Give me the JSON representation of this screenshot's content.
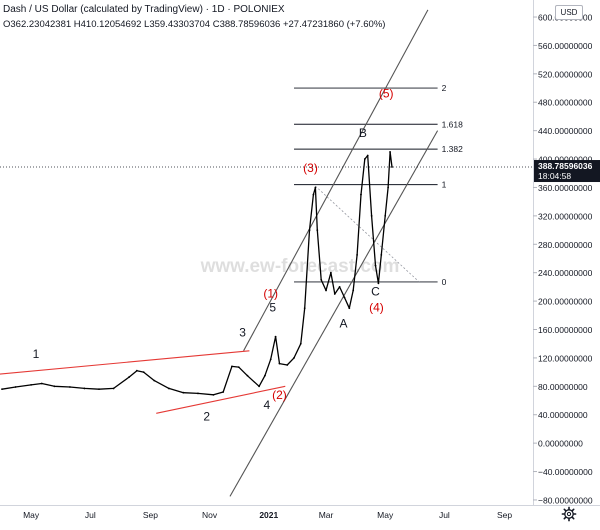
{
  "header": {
    "title": "Dash / US Dollar (calculated by TradingView) · 1D · POLONIEX",
    "ohlc": "O362.23042381 H410.12054692 L359.43303704 C388.78596036 +27.47231860 (+7.60%)"
  },
  "currency_badge": "USD",
  "watermark": "www.ew-forecast.com",
  "colors": {
    "price": "#000000",
    "channel": "#555555",
    "trendline": "#e53935",
    "wave_label_red": "#d50000",
    "wave_label_black": "#131722",
    "price_tag": "#131722"
  },
  "chart_data": {
    "type": "line",
    "title": "Dash / US Dollar (calculated by TradingView) · 1D · POLONIEX",
    "xlabel": "",
    "ylabel": "",
    "x_ticks": [
      "May",
      "Jul",
      "Sep",
      "Nov",
      "2021",
      "Mar",
      "May",
      "Jul",
      "Sep"
    ],
    "y_ticks": [
      "600.00000000",
      "560.00000000",
      "520.00000000",
      "480.00000000",
      "440.00000000",
      "400.00000000",
      "360.00000000",
      "320.00000000",
      "280.00000000",
      "240.00000000",
      "200.00000000",
      "160.00000000",
      "120.00000000",
      "80.00000000",
      "40.00000000",
      "0.00000000",
      "−40.00000000",
      "−80.00000000"
    ],
    "ylim": [
      -85,
      612
    ],
    "grid": false,
    "last_price": "388.78596036",
    "countdown": "18:04:58",
    "series": [
      {
        "values": [
          {
            "x": "2020-04-01",
            "y": 76
          },
          {
            "x": "2020-04-15",
            "y": 79
          },
          {
            "x": "2020-05-01",
            "y": 82
          },
          {
            "x": "2020-05-12",
            "y": 84
          },
          {
            "x": "2020-05-25",
            "y": 80
          },
          {
            "x": "2020-06-10",
            "y": 79
          },
          {
            "x": "2020-06-25",
            "y": 77
          },
          {
            "x": "2020-07-10",
            "y": 76
          },
          {
            "x": "2020-07-25",
            "y": 77
          },
          {
            "x": "2020-08-10",
            "y": 93
          },
          {
            "x": "2020-08-18",
            "y": 102
          },
          {
            "x": "2020-08-25",
            "y": 100
          },
          {
            "x": "2020-09-05",
            "y": 88
          },
          {
            "x": "2020-09-20",
            "y": 77
          },
          {
            "x": "2020-10-05",
            "y": 71
          },
          {
            "x": "2020-10-20",
            "y": 70
          },
          {
            "x": "2020-11-05",
            "y": 68
          },
          {
            "x": "2020-11-15",
            "y": 72
          },
          {
            "x": "2020-11-24",
            "y": 108
          },
          {
            "x": "2020-12-01",
            "y": 107
          },
          {
            "x": "2020-12-10",
            "y": 95
          },
          {
            "x": "2020-12-22",
            "y": 80
          },
          {
            "x": "2020-12-28",
            "y": 95
          },
          {
            "x": "2021-01-03",
            "y": 118
          },
          {
            "x": "2021-01-08",
            "y": 150
          },
          {
            "x": "2021-01-12",
            "y": 112
          },
          {
            "x": "2021-01-20",
            "y": 110
          },
          {
            "x": "2021-01-27",
            "y": 120
          },
          {
            "x": "2021-02-03",
            "y": 140
          },
          {
            "x": "2021-02-07",
            "y": 190
          },
          {
            "x": "2021-02-12",
            "y": 300
          },
          {
            "x": "2021-02-16",
            "y": 350
          },
          {
            "x": "2021-02-18",
            "y": 360
          },
          {
            "x": "2021-02-20",
            "y": 300
          },
          {
            "x": "2021-02-24",
            "y": 230
          },
          {
            "x": "2021-03-01",
            "y": 215
          },
          {
            "x": "2021-03-06",
            "y": 240
          },
          {
            "x": "2021-03-10",
            "y": 210
          },
          {
            "x": "2021-03-15",
            "y": 220
          },
          {
            "x": "2021-03-20",
            "y": 205
          },
          {
            "x": "2021-03-25",
            "y": 190
          },
          {
            "x": "2021-03-29",
            "y": 215
          },
          {
            "x": "2021-04-02",
            "y": 265
          },
          {
            "x": "2021-04-06",
            "y": 350
          },
          {
            "x": "2021-04-10",
            "y": 400
          },
          {
            "x": "2021-04-13",
            "y": 405
          },
          {
            "x": "2021-04-17",
            "y": 320
          },
          {
            "x": "2021-04-21",
            "y": 250
          },
          {
            "x": "2021-04-24",
            "y": 225
          },
          {
            "x": "2021-04-27",
            "y": 265
          },
          {
            "x": "2021-05-01",
            "y": 320
          },
          {
            "x": "2021-05-04",
            "y": 360
          },
          {
            "x": "2021-05-06",
            "y": 410
          },
          {
            "x": "2021-05-08",
            "y": 388.79
          }
        ]
      }
    ],
    "channel_lines": [
      {
        "role": "upper",
        "from": {
          "x": "2020-12-06",
          "y": 130
        },
        "to": {
          "x": "2021-06-14",
          "y": 610
        }
      },
      {
        "role": "lower",
        "from": {
          "x": "2020-11-22",
          "y": -75
        },
        "to": {
          "x": "2021-06-24",
          "y": 440
        }
      }
    ],
    "trend_lines": [
      {
        "role": "upper",
        "from": {
          "x": "2020-03-28",
          "y": 97
        },
        "to": {
          "x": "2020-12-12",
          "y": 130
        }
      },
      {
        "role": "lower",
        "from": {
          "x": "2020-09-07",
          "y": 42
        },
        "to": {
          "x": "2021-01-18",
          "y": 80
        }
      }
    ],
    "fib_levels": [
      {
        "label": "2",
        "value": 500
      },
      {
        "label": "1.618",
        "value": 449
      },
      {
        "label": "1.382",
        "value": 414
      },
      {
        "label": "1",
        "value": 364
      },
      {
        "label": "0",
        "value": 227
      }
    ],
    "fib_diagonal": {
      "from": {
        "x": "2021-02-18",
        "y": 362
      },
      "to": {
        "x": "2021-06-05",
        "y": 227
      }
    },
    "wave_labels": [
      {
        "text": "1",
        "x": "2020-05-06",
        "y": 120,
        "color": "black"
      },
      {
        "text": "2",
        "x": "2020-10-29",
        "y": 32,
        "color": "black"
      },
      {
        "text": "3",
        "x": "2020-12-05",
        "y": 150,
        "color": "black"
      },
      {
        "text": "4",
        "x": "2020-12-30",
        "y": 48,
        "color": "black"
      },
      {
        "text": "(2)",
        "x": "2021-01-12",
        "y": 62,
        "color": "red"
      },
      {
        "text": "5",
        "x": "2021-01-05",
        "y": 185,
        "color": "black"
      },
      {
        "text": "(1)",
        "x": "2021-01-03",
        "y": 205,
        "color": "red"
      },
      {
        "text": "(3)",
        "x": "2021-02-13",
        "y": 382,
        "color": "red"
      },
      {
        "text": "A",
        "x": "2021-03-19",
        "y": 163,
        "color": "black"
      },
      {
        "text": "B",
        "x": "2021-04-08",
        "y": 431,
        "color": "black"
      },
      {
        "text": "C",
        "x": "2021-04-21",
        "y": 208,
        "color": "black"
      },
      {
        "text": "(4)",
        "x": "2021-04-22",
        "y": 185,
        "color": "red"
      },
      {
        "text": "(5)",
        "x": "2021-05-02",
        "y": 487,
        "color": "red"
      }
    ]
  }
}
